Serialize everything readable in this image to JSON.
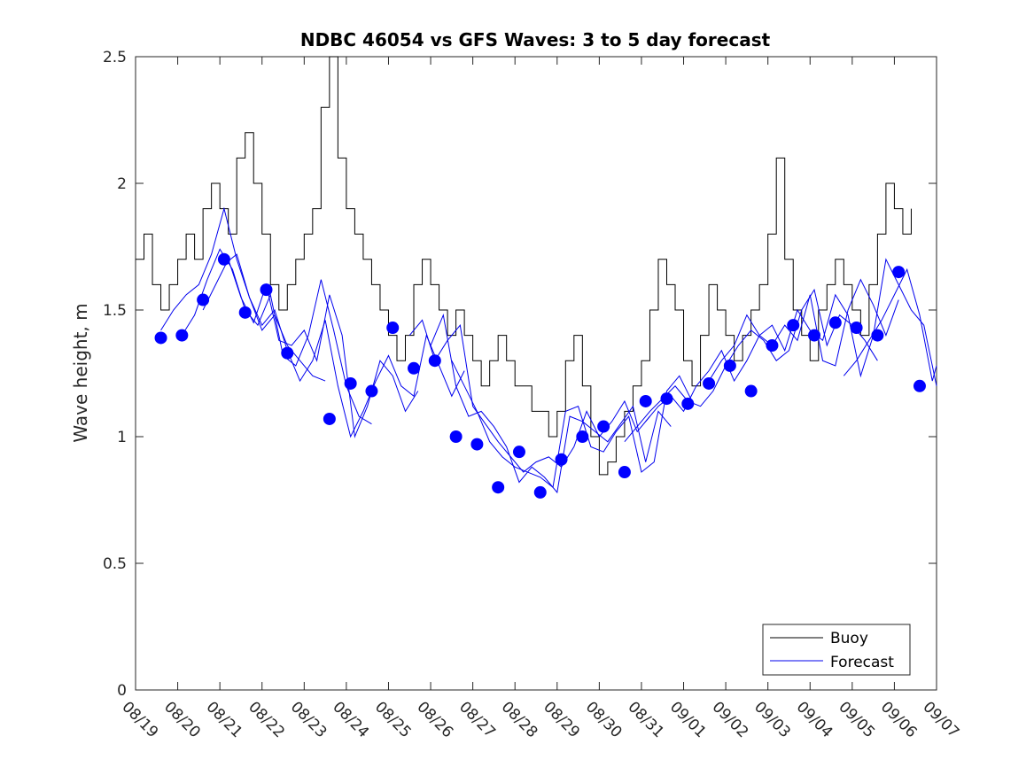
{
  "chart_data": {
    "type": "line",
    "title": "NDBC 46054 vs GFS Waves: 3 to 5 day forecast",
    "xlabel": "",
    "ylabel": "Wave height, m",
    "xlim": [
      0,
      19
    ],
    "ylim": [
      0,
      2.5
    ],
    "x_tick_labels": [
      "08/19",
      "08/20",
      "08/21",
      "08/22",
      "08/23",
      "08/24",
      "08/25",
      "08/26",
      "08/27",
      "08/28",
      "08/29",
      "08/30",
      "08/31",
      "09/01",
      "09/02",
      "09/03",
      "09/04",
      "09/05",
      "09/06",
      "09/07"
    ],
    "y_ticks": [
      0,
      0.5,
      1,
      1.5,
      2,
      2.5
    ],
    "y_tick_labels": [
      "0",
      "0.5",
      "1",
      "1.5",
      "2",
      "2.5"
    ],
    "legend": {
      "position": "bottom-right",
      "entries": [
        "Buoy",
        "Forecast"
      ]
    },
    "colors": {
      "buoy": "#000000",
      "forecast": "#0000ee",
      "markers": "#0000ff"
    },
    "series": [
      {
        "name": "Buoy",
        "x": [
          0,
          0.2,
          0.4,
          0.6,
          0.8,
          1.0,
          1.2,
          1.4,
          1.6,
          1.8,
          2.0,
          2.2,
          2.4,
          2.6,
          2.8,
          3.0,
          3.2,
          3.4,
          3.6,
          3.8,
          4.0,
          4.2,
          4.4,
          4.6,
          4.8,
          5.0,
          5.2,
          5.4,
          5.6,
          5.8,
          6.0,
          6.2,
          6.4,
          6.6,
          6.8,
          7.0,
          7.2,
          7.4,
          7.6,
          7.8,
          8.0,
          8.2,
          8.4,
          8.6,
          8.8,
          9.0,
          9.2,
          9.4,
          9.6,
          9.8,
          10.0,
          10.2,
          10.4,
          10.6,
          10.8,
          11.0,
          11.2,
          11.4,
          11.6,
          11.8,
          12.0,
          12.2,
          12.4,
          12.6,
          12.8,
          13.0,
          13.2,
          13.4,
          13.6,
          13.8,
          14.0,
          14.2,
          14.4,
          14.6,
          14.8,
          15.0,
          15.2,
          15.4,
          15.6,
          15.8,
          16.0,
          16.2,
          16.4,
          16.6,
          16.8,
          17.0,
          17.2,
          17.4,
          17.6,
          17.8,
          18.0,
          18.2,
          18.4
        ],
        "values": [
          1.7,
          1.8,
          1.6,
          1.5,
          1.6,
          1.7,
          1.8,
          1.7,
          1.9,
          2.0,
          1.9,
          1.8,
          2.1,
          2.2,
          2.0,
          1.8,
          1.6,
          1.5,
          1.6,
          1.7,
          1.8,
          1.9,
          2.3,
          2.5,
          2.1,
          1.9,
          1.8,
          1.7,
          1.6,
          1.5,
          1.4,
          1.3,
          1.4,
          1.6,
          1.7,
          1.6,
          1.5,
          1.4,
          1.5,
          1.4,
          1.3,
          1.2,
          1.3,
          1.4,
          1.3,
          1.2,
          1.2,
          1.1,
          1.1,
          1.0,
          1.1,
          1.3,
          1.4,
          1.2,
          1.0,
          0.85,
          0.9,
          1.0,
          1.1,
          1.2,
          1.3,
          1.5,
          1.7,
          1.6,
          1.5,
          1.3,
          1.2,
          1.4,
          1.6,
          1.5,
          1.4,
          1.3,
          1.4,
          1.5,
          1.6,
          1.8,
          2.1,
          1.7,
          1.5,
          1.4,
          1.3,
          1.5,
          1.6,
          1.7,
          1.6,
          1.5,
          1.4,
          1.6,
          1.8,
          2.0,
          1.9,
          1.8,
          1.9
        ]
      },
      {
        "name": "Forecast",
        "segments": [
          {
            "x": [
              0.6,
              0.9,
              1.2,
              1.5,
              1.8,
              2.1,
              2.4,
              2.7,
              3.0,
              3.3,
              3.6,
              3.9,
              4.2,
              4.5
            ],
            "values": [
              1.42,
              1.5,
              1.56,
              1.6,
              1.72,
              1.9,
              1.7,
              1.55,
              1.42,
              1.48,
              1.36,
              1.3,
              1.24,
              1.22
            ]
          },
          {
            "x": [
              1.1,
              1.4,
              1.7,
              2.0,
              2.3,
              2.6,
              2.9,
              3.2,
              3.5,
              3.8,
              4.1,
              4.4,
              4.7,
              5.0,
              5.3,
              5.6
            ],
            "values": [
              1.4,
              1.48,
              1.62,
              1.74,
              1.66,
              1.5,
              1.44,
              1.56,
              1.32,
              1.28,
              1.4,
              1.62,
              1.42,
              1.2,
              1.08,
              1.05
            ]
          },
          {
            "x": [
              1.6,
              1.9,
              2.2,
              2.5,
              2.8,
              3.1,
              3.4,
              3.7,
              4.0,
              4.3,
              4.6,
              4.9,
              5.2,
              5.5,
              5.8,
              6.1,
              6.4,
              6.7
            ],
            "values": [
              1.5,
              1.6,
              1.7,
              1.55,
              1.45,
              1.6,
              1.38,
              1.36,
              1.42,
              1.3,
              1.56,
              1.4,
              1.0,
              1.12,
              1.3,
              1.24,
              1.1,
              1.18
            ]
          },
          {
            "x": [
              2.1,
              2.4,
              2.7,
              3.0,
              3.3,
              3.6,
              3.9,
              4.2,
              4.5,
              4.8,
              5.1,
              5.4,
              5.7,
              6.0,
              6.3,
              6.6,
              6.9,
              7.2,
              7.5,
              7.8
            ],
            "values": [
              1.68,
              1.72,
              1.55,
              1.44,
              1.5,
              1.34,
              1.22,
              1.3,
              1.46,
              1.2,
              1.0,
              1.1,
              1.22,
              1.32,
              1.2,
              1.16,
              1.4,
              1.28,
              1.16,
              1.26
            ]
          },
          {
            "x": [
              6.5,
              6.8,
              7.1,
              7.4,
              7.7,
              8.0,
              8.3,
              8.6,
              8.9,
              9.2,
              9.5,
              9.8,
              10.1,
              10.4,
              10.7,
              11.0,
              11.3,
              11.6,
              11.9,
              12.2
            ],
            "values": [
              1.4,
              1.46,
              1.3,
              1.38,
              1.44,
              1.12,
              1.05,
              0.98,
              0.92,
              0.86,
              0.9,
              0.92,
              0.88,
              0.96,
              1.1,
              1.0,
              1.06,
              1.14,
              1.02,
              1.08
            ]
          },
          {
            "x": [
              7.0,
              7.3,
              7.6,
              7.9,
              8.2,
              8.5,
              8.8,
              9.1,
              9.4,
              9.7,
              10.0,
              10.3,
              10.6,
              10.9,
              11.2,
              11.5,
              11.8,
              12.1,
              12.4,
              12.7
            ],
            "values": [
              1.36,
              1.48,
              1.2,
              1.08,
              1.1,
              1.04,
              0.96,
              0.82,
              0.88,
              0.84,
              0.78,
              1.08,
              1.06,
              1.02,
              0.98,
              1.05,
              1.12,
              0.9,
              1.1,
              1.04
            ]
          },
          {
            "x": [
              7.5,
              7.8,
              8.1,
              8.4,
              8.7,
              9.0,
              9.3,
              9.6,
              9.9,
              10.2,
              10.5,
              10.8,
              11.1,
              11.4,
              11.7,
              12.0,
              12.3,
              12.6,
              12.9,
              13.2
            ],
            "values": [
              1.3,
              1.2,
              1.1,
              0.98,
              0.92,
              0.88,
              0.86,
              0.84,
              0.8,
              1.1,
              1.12,
              0.96,
              0.94,
              1.02,
              1.08,
              0.86,
              0.9,
              1.18,
              1.24,
              1.14
            ]
          },
          {
            "x": [
              11.6,
              11.9,
              12.2,
              12.5,
              12.8,
              13.1,
              13.4,
              13.7,
              14.0,
              14.3,
              14.6,
              14.9,
              15.2,
              15.5,
              15.8,
              16.1,
              16.4,
              16.7,
              17.0,
              17.3,
              17.6
            ],
            "values": [
              0.98,
              1.04,
              1.1,
              1.15,
              1.2,
              1.14,
              1.12,
              1.18,
              1.28,
              1.36,
              1.42,
              1.38,
              1.3,
              1.34,
              1.5,
              1.58,
              1.36,
              1.48,
              1.44,
              1.38,
              1.3
            ]
          },
          {
            "x": [
              12.1,
              12.4,
              12.7,
              13.0,
              13.3,
              13.6,
              13.9,
              14.2,
              14.5,
              14.8,
              15.1,
              15.4,
              15.7,
              16.0,
              16.3,
              16.6,
              16.9,
              17.2,
              17.5,
              17.8,
              18.1
            ],
            "values": [
              1.06,
              1.12,
              1.16,
              1.1,
              1.2,
              1.26,
              1.34,
              1.22,
              1.3,
              1.4,
              1.36,
              1.44,
              1.38,
              1.56,
              1.3,
              1.28,
              1.5,
              1.62,
              1.52,
              1.4,
              1.54
            ]
          },
          {
            "x": [
              13.6,
              13.9,
              14.2,
              14.5,
              14.8,
              15.1,
              15.4,
              15.7,
              16.0,
              16.3,
              16.6,
              16.9,
              17.2,
              17.5,
              17.8,
              18.1,
              18.4,
              18.7,
              19.0
            ],
            "values": [
              1.22,
              1.3,
              1.36,
              1.48,
              1.4,
              1.44,
              1.34,
              1.5,
              1.42,
              1.38,
              1.56,
              1.48,
              1.24,
              1.4,
              1.7,
              1.6,
              1.5,
              1.44,
              1.2
            ]
          },
          {
            "x": [
              16.8,
              17.1,
              17.4,
              17.7,
              18.0,
              18.3,
              18.6,
              18.9,
              19.0
            ],
            "values": [
              1.24,
              1.3,
              1.38,
              1.46,
              1.56,
              1.66,
              1.48,
              1.22,
              1.28
            ]
          }
        ]
      }
    ],
    "markers": {
      "x": [
        0.6,
        1.1,
        1.6,
        2.1,
        2.6,
        3.1,
        3.6,
        4.6,
        5.1,
        5.6,
        6.1,
        6.6,
        7.1,
        7.6,
        8.1,
        8.6,
        9.1,
        9.6,
        10.1,
        10.6,
        11.1,
        11.6,
        12.1,
        12.6,
        13.1,
        13.6,
        14.1,
        14.6,
        15.1,
        15.6,
        16.1,
        16.6,
        17.1,
        17.6,
        18.1,
        18.6
      ],
      "values": [
        1.39,
        1.4,
        1.54,
        1.7,
        1.49,
        1.58,
        1.33,
        1.07,
        1.21,
        1.18,
        1.43,
        1.27,
        1.3,
        1.0,
        0.97,
        0.8,
        0.94,
        0.78,
        0.91,
        1.0,
        1.04,
        0.86,
        1.14,
        1.15,
        1.13,
        1.21,
        1.28,
        1.18,
        1.36,
        1.44,
        1.4,
        1.45,
        1.43,
        1.4,
        1.65,
        1.2
      ]
    }
  }
}
